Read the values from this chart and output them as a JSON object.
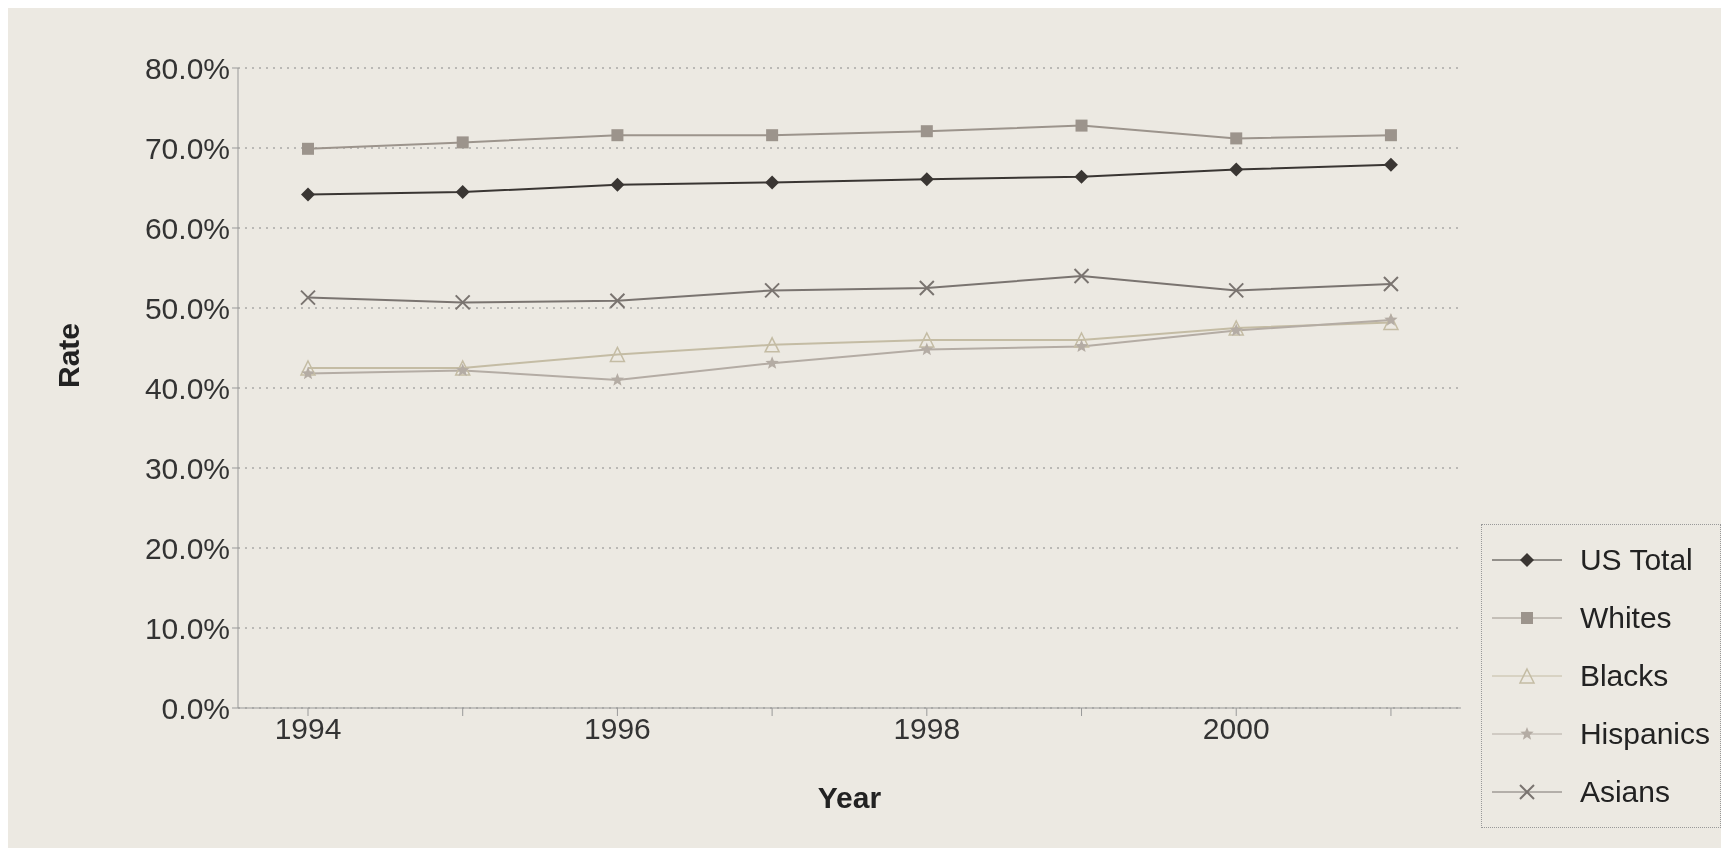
{
  "chart_data": {
    "type": "line",
    "xlabel": "Year",
    "ylabel": "Rate",
    "categories": [
      "1994",
      null,
      "1996",
      null,
      "1998",
      null,
      "2000",
      null
    ],
    "ylim": [
      0,
      80
    ],
    "yticks": [
      {
        "value": 0,
        "label": "0.0%"
      },
      {
        "value": 10,
        "label": "10.0%"
      },
      {
        "value": 20,
        "label": "20.0%"
      },
      {
        "value": 30,
        "label": "30.0%"
      },
      {
        "value": 40,
        "label": "40.0%"
      },
      {
        "value": 50,
        "label": "50.0%"
      },
      {
        "value": 60,
        "label": "60.0%"
      },
      {
        "value": 70,
        "label": "70.0%"
      },
      {
        "value": 80,
        "label": "80.0%"
      }
    ],
    "grid": "y",
    "legend": "bottom right",
    "line_style": "solid",
    "series": [
      {
        "name": "US Total",
        "color": "#3a3633",
        "marker": "diamond",
        "values": [
          64.2,
          64.5,
          65.4,
          65.7,
          66.1,
          66.4,
          67.3,
          67.9
        ]
      },
      {
        "name": "Whites",
        "color": "#9c948c",
        "marker": "square",
        "values": [
          69.9,
          70.7,
          71.6,
          71.6,
          72.1,
          72.8,
          71.2,
          71.6
        ]
      },
      {
        "name": "Blacks",
        "color": "#c4bca4",
        "marker": "triangle",
        "values": [
          42.5,
          42.5,
          44.2,
          45.4,
          46.0,
          46.0,
          47.5,
          48.2
        ]
      },
      {
        "name": "Hispanics",
        "color": "#b4aca4",
        "marker": "star",
        "values": [
          41.8,
          42.2,
          41.0,
          43.1,
          44.8,
          45.2,
          47.2,
          48.5
        ]
      },
      {
        "name": "Asians",
        "color": "#7a7470",
        "marker": "cross",
        "values": [
          51.3,
          50.7,
          50.9,
          52.2,
          52.5,
          54.0,
          52.2,
          53.0
        ]
      }
    ]
  }
}
